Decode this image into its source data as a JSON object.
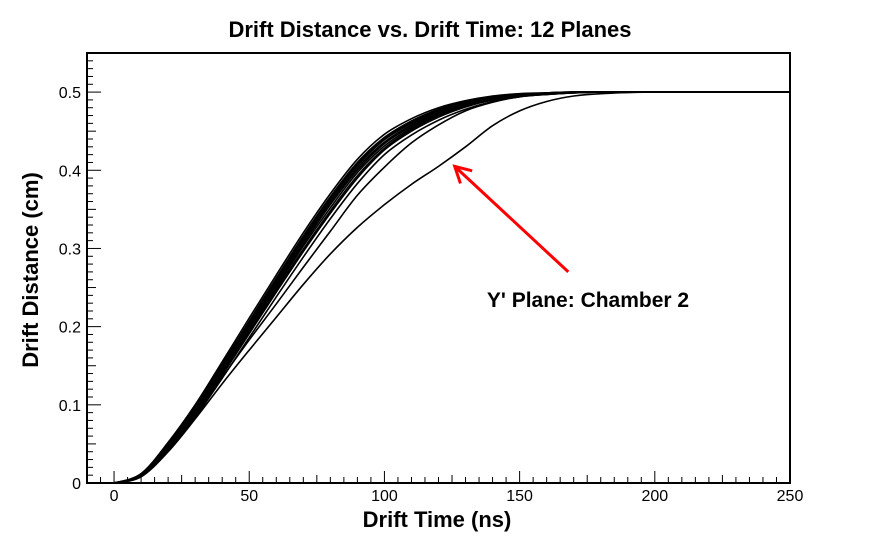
{
  "chart_data": {
    "type": "line",
    "title": "Drift Distance vs. Drift Time: 12 Planes",
    "xlabel": "Drift Time (ns)",
    "ylabel": "Drift Distance (cm)",
    "xlim": [
      -10,
      250
    ],
    "ylim": [
      0,
      0.55
    ],
    "xticks": [
      0,
      50,
      100,
      150,
      200,
      250
    ],
    "xtick_labels": [
      "0",
      "50",
      "100",
      "150",
      "200",
      "250"
    ],
    "yticks": [
      0,
      0.1,
      0.2,
      0.3,
      0.4,
      0.5
    ],
    "ytick_labels": [
      "0",
      "0.1",
      "0.2",
      "0.3",
      "0.4",
      "0.5"
    ],
    "grid": false,
    "legend": "none",
    "line_color": "#000000",
    "series": [
      {
        "x": [
          0,
          10,
          20,
          30,
          40,
          50,
          60,
          70,
          80,
          90,
          100,
          110,
          120,
          130,
          140,
          150,
          160,
          170,
          180,
          200,
          250
        ],
        "y": [
          0,
          0.011,
          0.05,
          0.097,
          0.152,
          0.207,
          0.262,
          0.316,
          0.366,
          0.41,
          0.442,
          0.463,
          0.478,
          0.488,
          0.494,
          0.497,
          0.499,
          0.5,
          0.5,
          0.5,
          0.5
        ]
      },
      {
        "x": [
          0,
          10,
          20,
          30,
          40,
          50,
          60,
          70,
          80,
          90,
          100,
          110,
          120,
          130,
          140,
          150,
          160,
          170,
          180,
          200,
          250
        ],
        "y": [
          0,
          0.01,
          0.047,
          0.093,
          0.147,
          0.202,
          0.256,
          0.309,
          0.359,
          0.403,
          0.436,
          0.458,
          0.474,
          0.485,
          0.492,
          0.496,
          0.498,
          0.5,
          0.5,
          0.5,
          0.5
        ]
      },
      {
        "x": [
          0,
          10,
          20,
          30,
          40,
          50,
          60,
          70,
          80,
          90,
          100,
          110,
          120,
          130,
          140,
          150,
          160,
          170,
          180,
          200,
          250
        ],
        "y": [
          0,
          0.01,
          0.045,
          0.09,
          0.142,
          0.196,
          0.25,
          0.303,
          0.352,
          0.397,
          0.431,
          0.454,
          0.471,
          0.483,
          0.491,
          0.495,
          0.498,
          0.499,
          0.5,
          0.5,
          0.5
        ]
      },
      {
        "x": [
          0,
          10,
          20,
          30,
          40,
          50,
          60,
          70,
          80,
          90,
          100,
          110,
          120,
          130,
          140,
          150,
          160,
          170,
          180,
          200,
          250
        ],
        "y": [
          0,
          0.009,
          0.043,
          0.087,
          0.138,
          0.191,
          0.244,
          0.296,
          0.345,
          0.39,
          0.426,
          0.45,
          0.468,
          0.481,
          0.49,
          0.495,
          0.497,
          0.499,
          0.5,
          0.5,
          0.5
        ]
      },
      {
        "x": [
          0,
          10,
          20,
          30,
          40,
          50,
          60,
          70,
          80,
          90,
          100,
          110,
          120,
          130,
          140,
          150,
          160,
          170,
          180,
          200,
          250
        ],
        "y": [
          0,
          0.009,
          0.041,
          0.084,
          0.134,
          0.186,
          0.238,
          0.289,
          0.338,
          0.383,
          0.42,
          0.445,
          0.464,
          0.478,
          0.488,
          0.494,
          0.497,
          0.499,
          0.5,
          0.5,
          0.5
        ]
      },
      {
        "x": [
          0,
          10,
          20,
          30,
          40,
          50,
          60,
          70,
          80,
          90,
          100,
          110,
          120,
          130,
          140,
          150,
          160,
          170,
          180,
          200,
          250
        ],
        "y": [
          0,
          0.012,
          0.052,
          0.1,
          0.155,
          0.211,
          0.266,
          0.32,
          0.37,
          0.414,
          0.446,
          0.466,
          0.48,
          0.489,
          0.495,
          0.498,
          0.499,
          0.5,
          0.5,
          0.5,
          0.5
        ]
      },
      {
        "x": [
          0,
          10,
          20,
          30,
          40,
          50,
          60,
          70,
          80,
          90,
          100,
          110,
          120,
          130,
          140,
          150,
          160,
          170,
          180,
          200,
          250
        ],
        "y": [
          0,
          0.01,
          0.048,
          0.095,
          0.149,
          0.204,
          0.259,
          0.312,
          0.362,
          0.406,
          0.439,
          0.46,
          0.476,
          0.486,
          0.493,
          0.497,
          0.499,
          0.5,
          0.5,
          0.5,
          0.5
        ]
      },
      {
        "x": [
          0,
          10,
          20,
          30,
          40,
          50,
          60,
          70,
          80,
          90,
          100,
          110,
          120,
          130,
          140,
          150,
          160,
          170,
          180,
          200,
          250
        ],
        "y": [
          0,
          0.009,
          0.044,
          0.089,
          0.14,
          0.193,
          0.247,
          0.299,
          0.348,
          0.393,
          0.428,
          0.452,
          0.47,
          0.482,
          0.49,
          0.495,
          0.498,
          0.499,
          0.5,
          0.5,
          0.5
        ]
      },
      {
        "x": [
          0,
          10,
          20,
          30,
          40,
          50,
          60,
          70,
          80,
          90,
          100,
          110,
          120,
          130,
          140,
          150,
          160,
          170,
          180,
          200,
          250
        ],
        "y": [
          0,
          0.011,
          0.049,
          0.096,
          0.15,
          0.205,
          0.26,
          0.314,
          0.364,
          0.408,
          0.44,
          0.461,
          0.477,
          0.487,
          0.493,
          0.497,
          0.499,
          0.5,
          0.5,
          0.5,
          0.5
        ]
      },
      {
        "x": [
          0,
          10,
          20,
          30,
          40,
          50,
          60,
          70,
          80,
          90,
          100,
          110,
          120,
          130,
          140,
          150,
          160,
          170,
          180,
          200,
          250
        ],
        "y": [
          0,
          0.01,
          0.046,
          0.092,
          0.144,
          0.199,
          0.253,
          0.306,
          0.356,
          0.4,
          0.434,
          0.456,
          0.473,
          0.484,
          0.491,
          0.496,
          0.498,
          0.5,
          0.5,
          0.5,
          0.5
        ]
      },
      {
        "x": [
          0,
          10,
          20,
          30,
          40,
          50,
          60,
          70,
          80,
          90,
          100,
          110,
          120,
          130,
          140,
          150,
          160,
          170,
          180,
          200,
          250
        ],
        "y": [
          0,
          0.008,
          0.042,
          0.086,
          0.135,
          0.183,
          0.229,
          0.276,
          0.322,
          0.368,
          0.404,
          0.435,
          0.458,
          0.476,
          0.487,
          0.494,
          0.497,
          0.499,
          0.5,
          0.5,
          0.5
        ]
      },
      {
        "x": [
          0,
          10,
          20,
          30,
          40,
          50,
          60,
          70,
          80,
          90,
          100,
          110,
          120,
          130,
          140,
          150,
          160,
          170,
          180,
          200,
          250
        ],
        "y": [
          0,
          0.008,
          0.04,
          0.082,
          0.127,
          0.17,
          0.212,
          0.254,
          0.293,
          0.327,
          0.356,
          0.382,
          0.405,
          0.43,
          0.457,
          0.476,
          0.488,
          0.495,
          0.498,
          0.5,
          0.5
        ]
      }
    ],
    "annotations": [
      {
        "text": "Y' Plane: Chamber 2",
        "color": "#ff0000",
        "arrow_from": [
          168,
          0.27
        ],
        "arrow_to": [
          126,
          0.405
        ]
      }
    ]
  }
}
